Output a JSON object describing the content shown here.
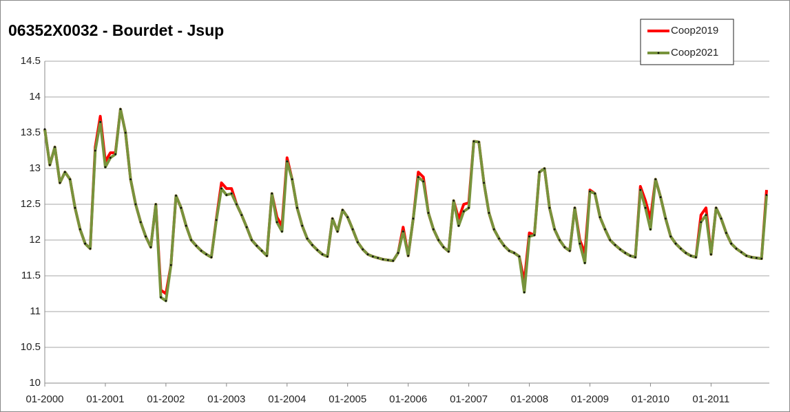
{
  "chart_data": {
    "type": "line",
    "title": "06352X0032 - Bourdet - Jsup",
    "categories": [
      "01-2000",
      null,
      null,
      null,
      null,
      null,
      null,
      null,
      null,
      null,
      null,
      null,
      "01-2001",
      null,
      null,
      null,
      null,
      null,
      null,
      null,
      null,
      null,
      null,
      null,
      "01-2002",
      null,
      null,
      null,
      null,
      null,
      null,
      null,
      null,
      null,
      null,
      null,
      "01-2003",
      null,
      null,
      null,
      null,
      null,
      null,
      null,
      null,
      null,
      null,
      null,
      "01-2004",
      null,
      null,
      null,
      null,
      null,
      null,
      null,
      null,
      null,
      null,
      null,
      "01-2005",
      null,
      null,
      null,
      null,
      null,
      null,
      null,
      null,
      null,
      null,
      null,
      "01-2006",
      null,
      null,
      null,
      null,
      null,
      null,
      null,
      null,
      null,
      null,
      null,
      "01-2007",
      null,
      null,
      null,
      null,
      null,
      null,
      null,
      null,
      null,
      null,
      null,
      "01-2008",
      null,
      null,
      null,
      null,
      null,
      null,
      null,
      null,
      null,
      null,
      null,
      "01-2009",
      null,
      null,
      null,
      null,
      null,
      null,
      null,
      null,
      null,
      null,
      null,
      "01-2010",
      null,
      null,
      null,
      null,
      null,
      null,
      null,
      null,
      null,
      null,
      null,
      "01-2011",
      null,
      null,
      null,
      null,
      null,
      null,
      null,
      null,
      null,
      null,
      null
    ],
    "series": [
      {
        "name": "Coop2019",
        "color": "#ff0000",
        "values": [
          13.55,
          13.05,
          13.3,
          12.8,
          12.95,
          12.85,
          12.45,
          12.15,
          11.95,
          11.88,
          13.3,
          13.73,
          13.1,
          13.22,
          13.22,
          13.83,
          13.5,
          12.85,
          12.5,
          12.25,
          12.05,
          11.9,
          12.5,
          11.3,
          11.25,
          11.65,
          12.62,
          12.45,
          12.2,
          12.0,
          11.92,
          11.85,
          11.8,
          11.76,
          12.3,
          12.8,
          12.72,
          12.72,
          12.5,
          12.35,
          12.18,
          12.0,
          11.92,
          11.85,
          11.78,
          12.65,
          12.32,
          12.2,
          13.15,
          12.85,
          12.45,
          12.2,
          12.02,
          11.93,
          11.86,
          11.8,
          11.77,
          12.3,
          12.12,
          12.42,
          12.32,
          12.15,
          11.97,
          11.87,
          11.8,
          11.77,
          11.75,
          11.73,
          11.72,
          11.71,
          11.82,
          12.18,
          11.78,
          12.3,
          12.95,
          12.88,
          12.38,
          12.15,
          12.0,
          11.9,
          11.84,
          12.55,
          12.3,
          12.5,
          12.52,
          13.38,
          13.37,
          12.8,
          12.38,
          12.15,
          12.02,
          11.92,
          11.85,
          11.82,
          11.77,
          11.42,
          12.1,
          12.07,
          12.95,
          13.0,
          12.45,
          12.15,
          12.0,
          11.9,
          11.85,
          12.45,
          12.0,
          11.82,
          12.7,
          12.65,
          12.32,
          12.15,
          12.0,
          11.93,
          11.87,
          11.82,
          11.78,
          11.76,
          12.75,
          12.55,
          12.3,
          12.85,
          12.6,
          12.3,
          12.05,
          11.95,
          11.88,
          11.82,
          11.78,
          11.76,
          12.35,
          12.45,
          11.8,
          12.45,
          12.3,
          12.1,
          11.95,
          11.88,
          11.83,
          11.78,
          11.76,
          11.75,
          11.74,
          12.7
        ]
      },
      {
        "name": "Coop2021",
        "color": "#77933c",
        "values": [
          13.55,
          13.05,
          13.3,
          12.8,
          12.95,
          12.85,
          12.45,
          12.15,
          11.95,
          11.88,
          13.25,
          13.65,
          13.02,
          13.15,
          13.2,
          13.83,
          13.5,
          12.85,
          12.5,
          12.25,
          12.05,
          11.9,
          12.5,
          11.2,
          11.15,
          11.65,
          12.62,
          12.45,
          12.2,
          12.0,
          11.92,
          11.85,
          11.8,
          11.76,
          12.28,
          12.72,
          12.63,
          12.65,
          12.5,
          12.35,
          12.18,
          12.0,
          11.92,
          11.85,
          11.78,
          12.65,
          12.25,
          12.12,
          13.1,
          12.85,
          12.45,
          12.2,
          12.02,
          11.93,
          11.86,
          11.8,
          11.77,
          12.3,
          12.12,
          12.42,
          12.32,
          12.15,
          11.97,
          11.87,
          11.8,
          11.77,
          11.75,
          11.73,
          11.72,
          11.71,
          11.82,
          12.12,
          11.78,
          12.3,
          12.88,
          12.82,
          12.38,
          12.15,
          12.0,
          11.9,
          11.84,
          12.55,
          12.2,
          12.4,
          12.45,
          13.38,
          13.37,
          12.8,
          12.38,
          12.15,
          12.02,
          11.92,
          11.85,
          11.82,
          11.77,
          11.27,
          12.05,
          12.07,
          12.95,
          13.0,
          12.45,
          12.15,
          12.0,
          11.9,
          11.85,
          12.45,
          11.95,
          11.68,
          12.68,
          12.65,
          12.32,
          12.15,
          12.0,
          11.93,
          11.87,
          11.82,
          11.78,
          11.76,
          12.7,
          12.45,
          12.15,
          12.85,
          12.6,
          12.3,
          12.05,
          11.95,
          11.88,
          11.82,
          11.78,
          11.76,
          12.25,
          12.35,
          11.8,
          12.45,
          12.3,
          12.1,
          11.95,
          11.88,
          11.83,
          11.78,
          11.76,
          11.75,
          11.74,
          12.63
        ]
      }
    ],
    "ylim": [
      10,
      14.5
    ],
    "yticks": [
      10,
      10.5,
      11,
      11.5,
      12,
      12.5,
      13,
      13.5,
      14,
      14.5
    ],
    "grid": true,
    "legend": "upper right"
  }
}
